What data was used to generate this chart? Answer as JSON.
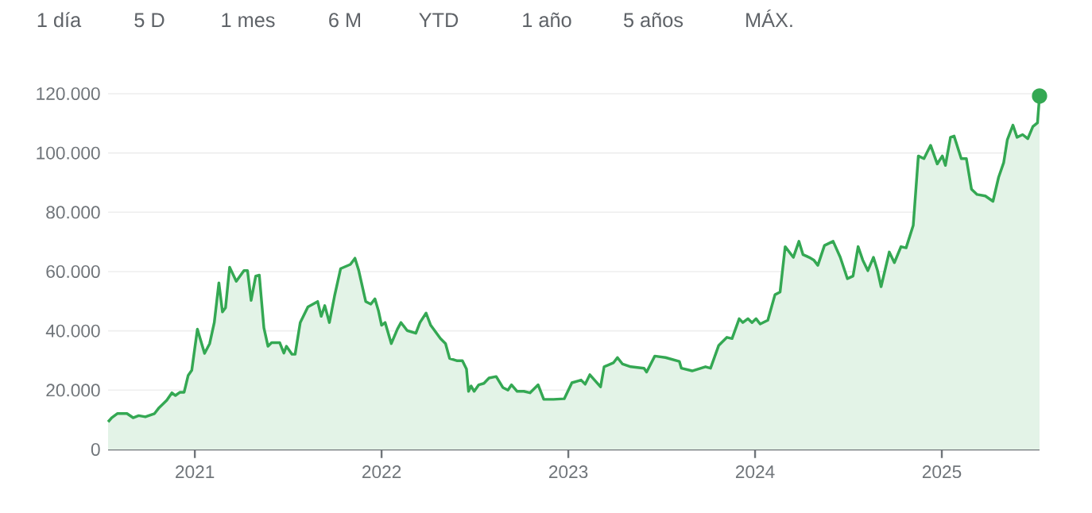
{
  "chart_data": {
    "type": "area",
    "grid": "y",
    "xlim": [
      "2020-07-15",
      "2025-07-11"
    ],
    "xticks": [
      {
        "value": "2021-01-01",
        "label": "2021"
      },
      {
        "value": "2022-01-01",
        "label": "2022"
      },
      {
        "value": "2023-01-01",
        "label": "2023"
      },
      {
        "value": "2024-01-01",
        "label": "2024"
      },
      {
        "value": "2025-01-01",
        "label": "2025"
      }
    ],
    "ylim": [
      0,
      120000
    ],
    "yticks": [
      0,
      {
        "value": 20000,
        "label": "20.000"
      },
      {
        "value": 40000,
        "label": "40.000"
      },
      {
        "value": 60000,
        "label": "60.000"
      },
      {
        "value": 80000,
        "label": "80.000"
      },
      {
        "value": 100000,
        "label": "100.000"
      },
      {
        "value": 120000,
        "label": "120.000"
      }
    ],
    "annotations": [
      "1 día",
      "5 D",
      "1 mes",
      "6 M",
      "YTD",
      "1 año",
      "5 años",
      "MÁX."
    ],
    "series": [
      {
        "color": "#34a853",
        "x": [
          "2020-07-15",
          "2020-07-22",
          "2020-08-02",
          "2020-08-21",
          "2020-09-02",
          "2020-09-13",
          "2020-09-26",
          "2020-10-14",
          "2020-10-22",
          "2020-11-07",
          "2020-11-17",
          "2020-11-24",
          "2020-12-03",
          "2020-12-11",
          "2020-12-19",
          "2020-12-26",
          "2021-01-06",
          "2021-01-20",
          "2021-01-30",
          "2021-02-08",
          "2021-02-17",
          "2021-02-24",
          "2021-03-02",
          "2021-03-10",
          "2021-03-23",
          "2021-04-07",
          "2021-04-14",
          "2021-04-21",
          "2021-04-30",
          "2021-05-07",
          "2021-05-16",
          "2021-05-24",
          "2021-05-31",
          "2021-06-16",
          "2021-06-24",
          "2021-06-29",
          "2021-07-10",
          "2021-07-16",
          "2021-07-26",
          "2021-08-10",
          "2021-08-29",
          "2021-09-05",
          "2021-09-12",
          "2021-09-21",
          "2021-10-01",
          "2021-10-13",
          "2021-11-01",
          "2021-11-10",
          "2021-11-17",
          "2021-12-01",
          "2021-12-11",
          "2021-12-19",
          "2021-12-26",
          "2022-01-01",
          "2022-01-08",
          "2022-01-20",
          "2022-02-01",
          "2022-02-08",
          "2022-02-20",
          "2022-03-09",
          "2022-03-17",
          "2022-03-29",
          "2022-04-07",
          "2022-04-26",
          "2022-05-06",
          "2022-05-14",
          "2022-05-29",
          "2022-06-08",
          "2022-06-16",
          "2022-06-20",
          "2022-06-25",
          "2022-07-01",
          "2022-07-10",
          "2022-07-20",
          "2022-07-30",
          "2022-08-13",
          "2022-08-26",
          "2022-09-05",
          "2022-09-12",
          "2022-09-23",
          "2022-10-06",
          "2022-10-18",
          "2022-11-03",
          "2022-11-14",
          "2022-12-03",
          "2022-12-24",
          "2023-01-08",
          "2023-01-26",
          "2023-02-03",
          "2023-02-12",
          "2023-03-05",
          "2023-03-12",
          "2023-03-30",
          "2023-04-07",
          "2023-04-17",
          "2023-05-03",
          "2023-05-29",
          "2023-06-03",
          "2023-06-19",
          "2023-07-10",
          "2023-08-06",
          "2023-08-10",
          "2023-08-31",
          "2023-09-26",
          "2023-10-06",
          "2023-10-22",
          "2023-11-07",
          "2023-11-17",
          "2023-12-01",
          "2023-12-08",
          "2023-12-18",
          "2023-12-26",
          "2024-01-03",
          "2024-01-11",
          "2024-01-26",
          "2024-02-09",
          "2024-02-19",
          "2024-02-29",
          "2024-03-16",
          "2024-03-27",
          "2024-04-04",
          "2024-04-16",
          "2024-04-25",
          "2024-05-03",
          "2024-05-16",
          "2024-06-02",
          "2024-06-16",
          "2024-06-30",
          "2024-07-11",
          "2024-07-21",
          "2024-07-30",
          "2024-08-09",
          "2024-08-20",
          "2024-08-28",
          "2024-09-04",
          "2024-09-20",
          "2024-09-30",
          "2024-10-13",
          "2024-10-23",
          "2024-11-06",
          "2024-11-16",
          "2024-11-27",
          "2024-12-10",
          "2024-12-23",
          "2025-01-02",
          "2025-01-08",
          "2025-01-18",
          "2025-01-25",
          "2025-02-08",
          "2025-02-18",
          "2025-02-28",
          "2025-03-11",
          "2025-03-27",
          "2025-04-11",
          "2025-04-22",
          "2025-05-02",
          "2025-05-09",
          "2025-05-20",
          "2025-05-28",
          "2025-06-08",
          "2025-06-18",
          "2025-06-28",
          "2025-07-07",
          "2025-07-11"
        ],
        "values": [
          9300,
          10700,
          12100,
          12100,
          10700,
          11400,
          11000,
          12100,
          13900,
          16600,
          19100,
          18200,
          19300,
          19300,
          25000,
          26700,
          40600,
          32400,
          35700,
          42800,
          56200,
          46400,
          47800,
          61500,
          56700,
          60300,
          60300,
          50300,
          58500,
          58800,
          41000,
          34800,
          36000,
          36000,
          32500,
          34800,
          32100,
          32100,
          42800,
          48100,
          49900,
          44900,
          48500,
          42800,
          51700,
          61000,
          62400,
          64500,
          60600,
          49900,
          49000,
          50800,
          46700,
          41900,
          42800,
          35700,
          40600,
          42800,
          40100,
          39200,
          42800,
          46000,
          41900,
          37400,
          35700,
          30700,
          29900,
          29900,
          27100,
          19600,
          21400,
          19600,
          21800,
          22300,
          24100,
          24600,
          20900,
          20000,
          21800,
          19600,
          19600,
          19100,
          21800,
          16900,
          16900,
          17100,
          22500,
          23400,
          22000,
          25200,
          21100,
          27900,
          29200,
          31000,
          28800,
          27900,
          27400,
          26100,
          31500,
          31000,
          29700,
          27400,
          26500,
          27900,
          27400,
          35100,
          37800,
          37400,
          44100,
          42800,
          44100,
          42800,
          44100,
          42300,
          43600,
          52200,
          53100,
          68400,
          64800,
          70200,
          65700,
          64800,
          63900,
          62100,
          68800,
          70200,
          64800,
          57600,
          58500,
          68400,
          63900,
          60300,
          64800,
          60300,
          54900,
          66600,
          63000,
          68400,
          68000,
          75600,
          99000,
          98100,
          102600,
          96300,
          99000,
          95800,
          105300,
          105700,
          98100,
          98100,
          87800,
          86000,
          85500,
          83700,
          91800,
          96800,
          104400,
          109400,
          105300,
          106200,
          104800,
          108900,
          110200,
          119200
        ]
      },
      {
        "type": "scatter",
        "color": "#34a853",
        "marker": "circle",
        "x": [
          "2025-07-11"
        ],
        "values": [
          119200
        ]
      }
    ]
  }
}
